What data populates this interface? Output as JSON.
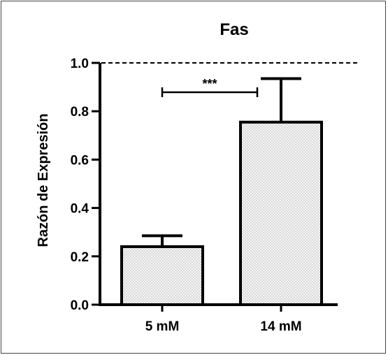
{
  "chart_data": {
    "type": "bar",
    "title": "Fas",
    "xlabel": "",
    "ylabel": "Razón de Expresión",
    "categories": [
      "5 mM",
      "14 mM"
    ],
    "values": [
      0.24,
      0.755
    ],
    "error_upper": [
      0.285,
      0.935
    ],
    "ylim": [
      0,
      1.0
    ],
    "yticks": [
      "0.0",
      "0.2",
      "0.4",
      "0.6",
      "0.8",
      "1.0"
    ],
    "reference_line": 1.0,
    "significance": {
      "label": "***",
      "between": [
        "5 mM",
        "14 mM"
      ]
    },
    "grid": false,
    "bar_fill": "#f0f0f0",
    "bar_stroke": "#000000"
  }
}
